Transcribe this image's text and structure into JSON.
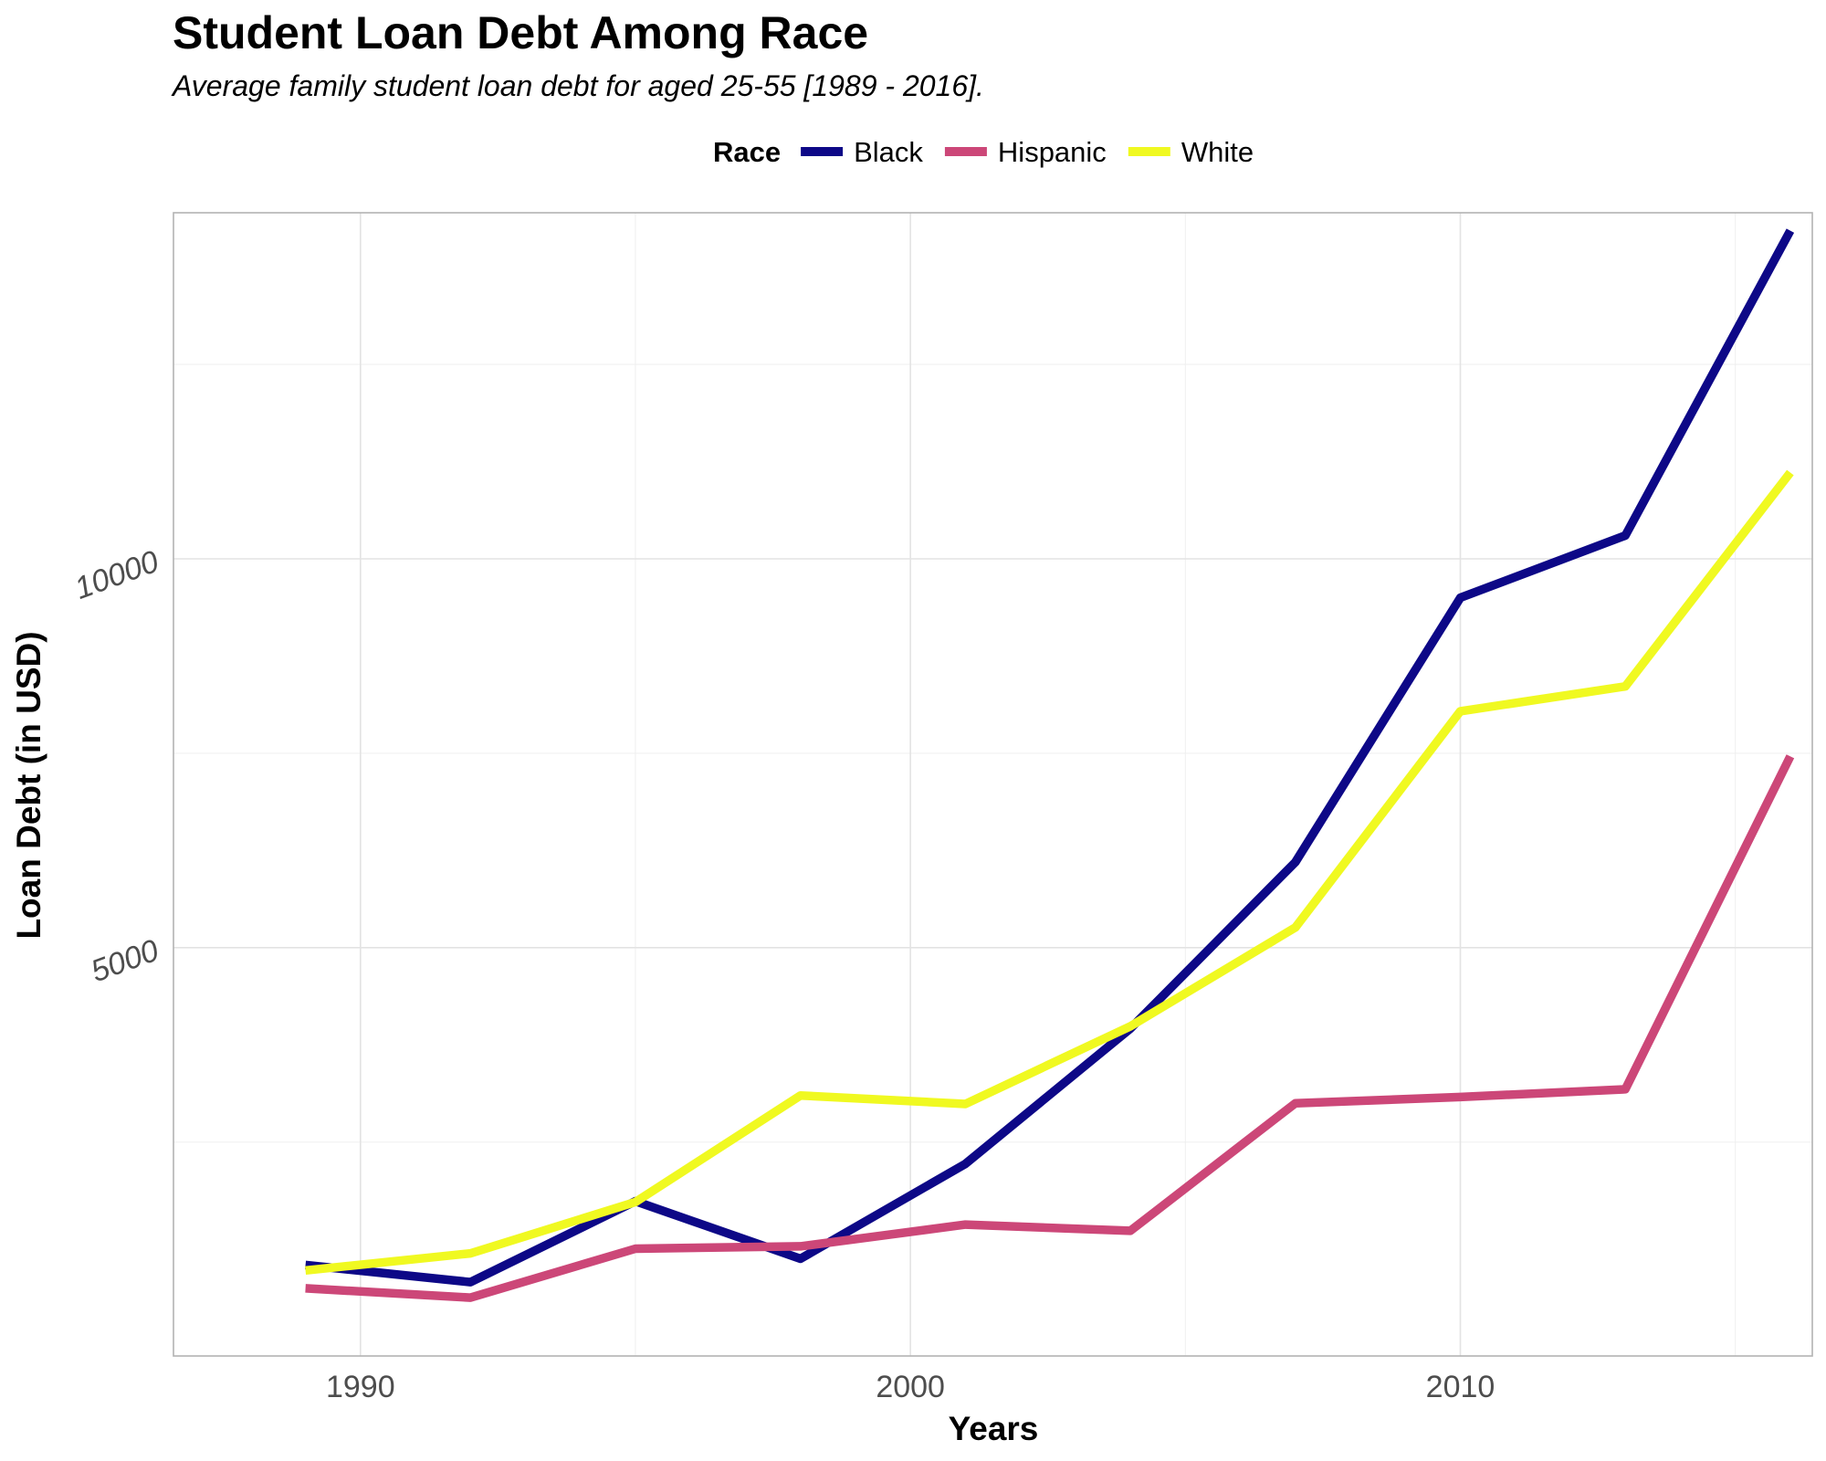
{
  "chart_data": {
    "type": "line",
    "title": "Student Loan Debt Among Race",
    "subtitle": "Average family student loan debt for aged 25-55 [1989 - 2016].",
    "xlabel": "Years",
    "ylabel": "Loan Debt (in USD)",
    "legend": {
      "title": "Race",
      "placement": "top"
    },
    "x": [
      1989,
      1992,
      1995,
      1998,
      2001,
      2004,
      2007,
      2010,
      2013,
      2016
    ],
    "xlim": [
      1986.6,
      2016.4
    ],
    "ylim": [
      -250,
      14450
    ],
    "xticks": [
      1990,
      2000,
      2010
    ],
    "xtick_labels": [
      "1990",
      "2000",
      "2010"
    ],
    "yticks": [
      5000,
      10000
    ],
    "ytick_labels": [
      "5000",
      "10000"
    ],
    "grid": true,
    "series": [
      {
        "name": "Black",
        "color": "#0d0887",
        "values": [
          920,
          700,
          1740,
          1000,
          2220,
          3960,
          6100,
          9500,
          10300,
          14220
        ]
      },
      {
        "name": "Hispanic",
        "color": "#cc4778",
        "values": [
          620,
          500,
          1130,
          1160,
          1440,
          1360,
          3000,
          3080,
          3180,
          7460
        ]
      },
      {
        "name": "White",
        "color": "#f0f921",
        "values": [
          850,
          1070,
          1730,
          3100,
          2990,
          3990,
          5260,
          8040,
          8360,
          11110
        ]
      }
    ]
  }
}
